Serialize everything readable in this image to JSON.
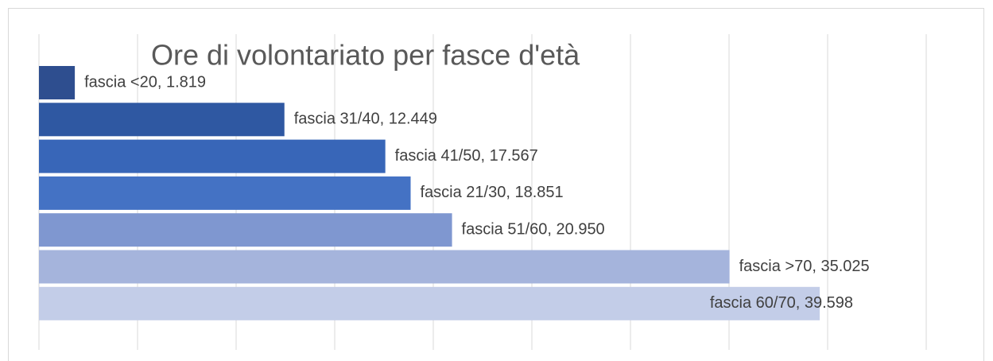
{
  "chart_data": {
    "type": "bar",
    "orientation": "horizontal",
    "title": "Ore di volontariato per fasce d'età",
    "categories": [
      "fascia <20",
      "fascia 31/40",
      "fascia 41/50",
      "fascia 21/30",
      "fascia 51/60",
      "fascia >70",
      "fascia 60/70"
    ],
    "values": [
      1819,
      12449,
      17567,
      18851,
      20950,
      35025,
      39598
    ],
    "value_labels": [
      "fascia <20, 1.819",
      "fascia 31/40, 12.449",
      "fascia 41/50, 17.567",
      "fascia 21/30, 18.851",
      "fascia 51/60, 20.950",
      "fascia >70, 35.025",
      "fascia 60/70, 39.598"
    ],
    "colors": [
      "#2e4e8f",
      "#2f58a2",
      "#3866b8",
      "#4472c4",
      "#7f97d0",
      "#a5b4dc",
      "#c3cde8"
    ],
    "xlim": [
      0,
      45000
    ],
    "xticks": [
      0,
      5000,
      10000,
      15000,
      20000,
      25000,
      30000,
      35000,
      40000,
      45000
    ],
    "grid": true
  }
}
